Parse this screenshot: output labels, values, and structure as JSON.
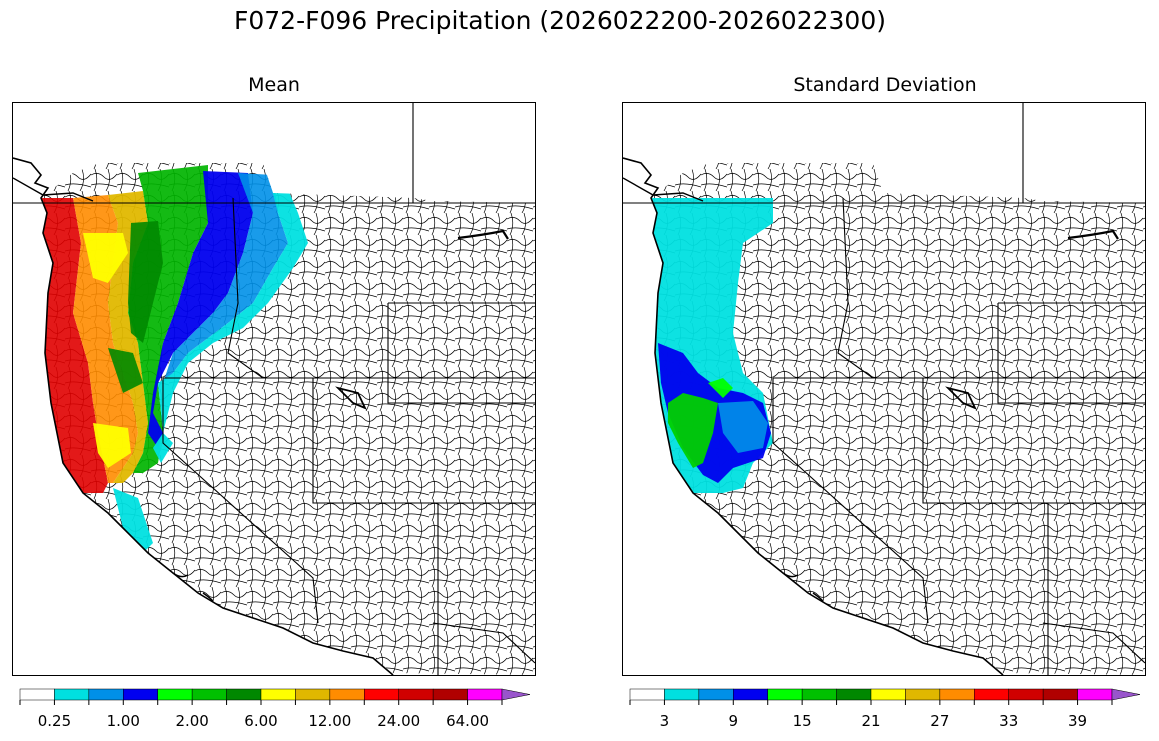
{
  "title": "F072-F096 Precipitation (2026022200-2026022300)",
  "panels": [
    {
      "id": "mean",
      "title": "Mean",
      "colorbar": {
        "colors": [
          "#ffffff",
          "#00e0e0",
          "#0090e8",
          "#0000f0",
          "#00ff00",
          "#00c000",
          "#008800",
          "#ffff00",
          "#e0b800",
          "#ff8c00",
          "#ff0000",
          "#d00000",
          "#b00000",
          "#ff00ff",
          "#9955cc"
        ],
        "tick_labels": [
          "0.25",
          "1.00",
          "2.00",
          "6.00",
          "12.00",
          "24.00",
          "64.00"
        ],
        "label_every": 2,
        "extend": "max"
      }
    },
    {
      "id": "stddev",
      "title": "Standard Deviation",
      "colorbar": {
        "colors": [
          "#ffffff",
          "#00e0e0",
          "#0090e8",
          "#0000f0",
          "#00ff00",
          "#00c000",
          "#008800",
          "#ffff00",
          "#e0b800",
          "#ff8c00",
          "#ff0000",
          "#d00000",
          "#b00000",
          "#ff00ff",
          "#9955cc"
        ],
        "tick_labels": [
          "3",
          "9",
          "15",
          "21",
          "27",
          "33",
          "39"
        ],
        "label_every": 2,
        "extend": "max"
      }
    }
  ]
}
